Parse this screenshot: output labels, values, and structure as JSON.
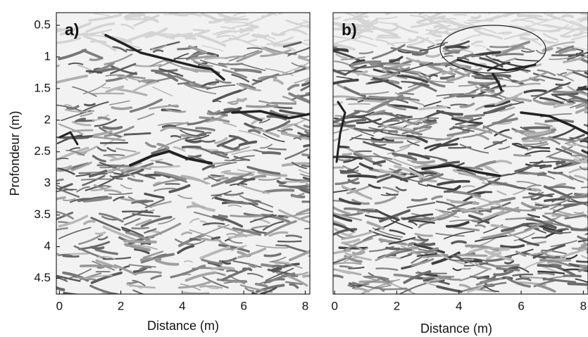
{
  "chart_data": [
    {
      "type": "radargram",
      "panel_label": "a)",
      "xlabel": "Distance (m)",
      "ylabel": "Profondeur (m)",
      "xlim": [
        -0.1,
        8.15
      ],
      "ylim": [
        4.75,
        0.3
      ],
      "xticks": [
        0,
        2,
        4,
        6,
        8
      ],
      "yticks": [
        0.5,
        1,
        1.5,
        2,
        2.5,
        3,
        3.5,
        4,
        4.5
      ]
    },
    {
      "type": "radargram",
      "panel_label": "b)",
      "xlabel": "Distance (m)",
      "xlim": [
        -0.05,
        8.15
      ],
      "ylim": [
        4.75,
        0.3
      ],
      "xticks": [
        0,
        2,
        4,
        6,
        8
      ]
    }
  ]
}
